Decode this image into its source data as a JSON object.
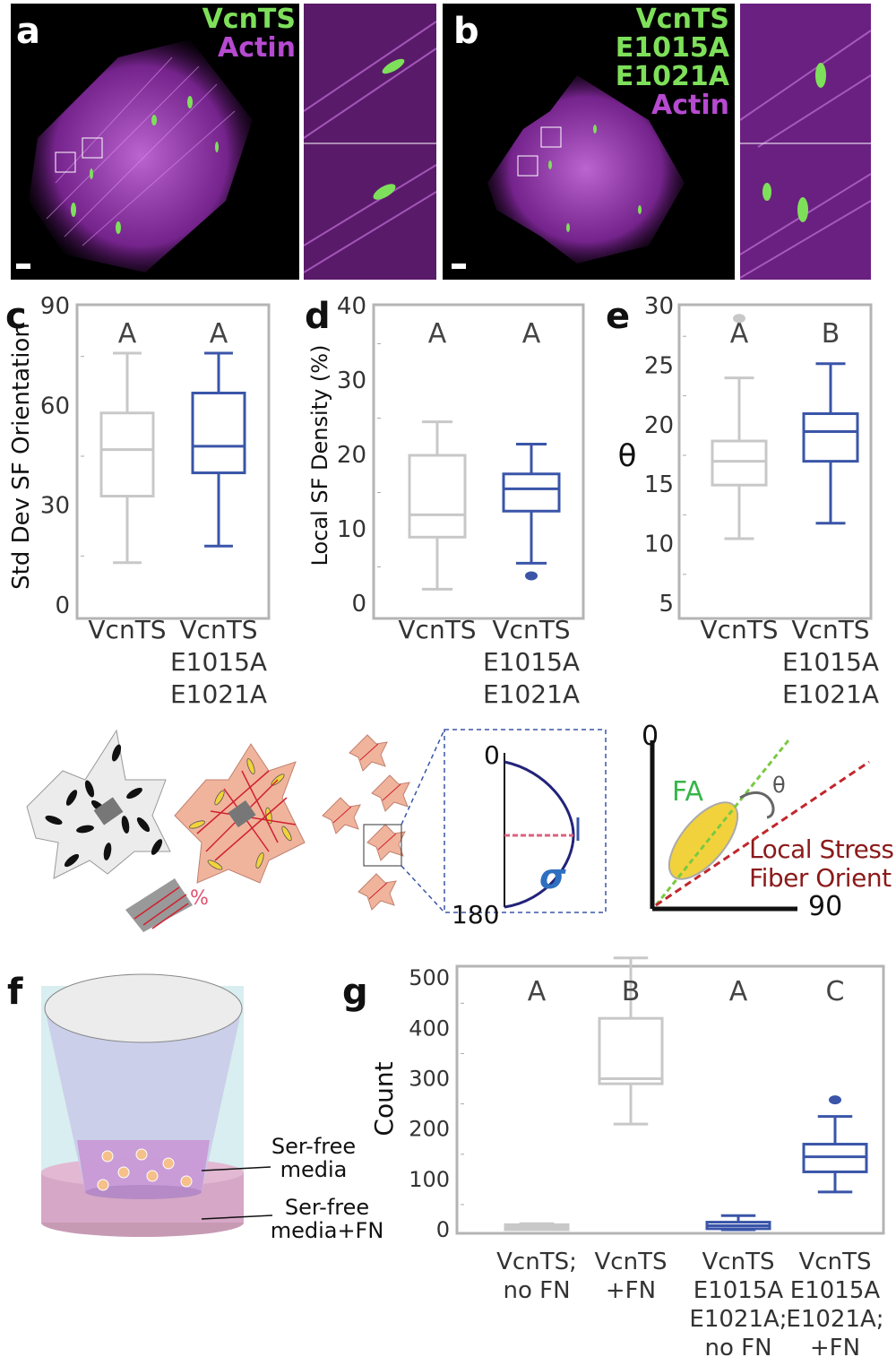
{
  "colors": {
    "gray": "#c8c8c8",
    "blue": "#3a55a8",
    "frame": "#b4b4b4",
    "green": "#7ee05a",
    "magenta": "#b64ad0",
    "red": "#c0272d",
    "pink": "#e0506f"
  },
  "panel_a": {
    "label": "a",
    "legend": [
      "VcnTS",
      "Actin"
    ]
  },
  "panel_b": {
    "label": "b",
    "legend": [
      "VcnTS",
      "E1015A",
      "E1021A",
      "Actin"
    ]
  },
  "chart_data": [
    {
      "panel": "c",
      "type": "box",
      "ylabel": "Std Dev SF Orientation",
      "ylim": [
        0,
        90
      ],
      "yticks": [
        0,
        30,
        60,
        90
      ],
      "categories": [
        [
          "VcnTS"
        ],
        [
          "VcnTS",
          "E1015A",
          "E1021A"
        ]
      ],
      "groups": [
        "A",
        "A"
      ],
      "boxes": [
        {
          "color": "gray",
          "min": 13,
          "q1": 33,
          "median": 47,
          "q3": 58,
          "max": 76
        },
        {
          "color": "blue",
          "min": 18,
          "q1": 40,
          "median": 48,
          "q3": 64,
          "max": 76
        }
      ],
      "outliers": []
    },
    {
      "panel": "d",
      "type": "box",
      "ylabel": "Local SF Density (%)",
      "ylim": [
        0,
        40
      ],
      "yticks": [
        0,
        10,
        20,
        30,
        40
      ],
      "categories": [
        [
          "VcnTS"
        ],
        [
          "VcnTS",
          "E1015A",
          "E1021A"
        ]
      ],
      "groups": [
        "A",
        "A"
      ],
      "boxes": [
        {
          "color": "gray",
          "min": 2,
          "q1": 9,
          "median": 12,
          "q3": 20,
          "max": 24.5
        },
        {
          "color": "blue",
          "min": 5.5,
          "q1": 12.5,
          "median": 15.5,
          "q3": 17.5,
          "max": 21.5
        }
      ],
      "outliers": [
        {
          "series": 1,
          "value": 3.8
        }
      ]
    },
    {
      "panel": "e",
      "type": "box",
      "ylabel": "θ",
      "ylim": [
        5,
        30
      ],
      "yticks": [
        5,
        10,
        15,
        20,
        25,
        30
      ],
      "categories": [
        [
          "VcnTS"
        ],
        [
          "VcnTS",
          "E1015A",
          "E1021A"
        ]
      ],
      "groups": [
        "A",
        "B"
      ],
      "boxes": [
        {
          "color": "gray",
          "min": 10.5,
          "q1": 15,
          "median": 17,
          "q3": 18.7,
          "max": 24
        },
        {
          "color": "blue",
          "min": 11.8,
          "q1": 17,
          "median": 19.5,
          "q3": 21,
          "max": 25.2
        }
      ],
      "outliers": [
        {
          "series": 0,
          "value": 29
        }
      ]
    },
    {
      "panel": "g",
      "type": "box",
      "ylabel": "Count",
      "ylim": [
        0,
        520
      ],
      "yticks": [
        0,
        100,
        200,
        300,
        400,
        500
      ],
      "categories": [
        [
          "VcnTS;",
          "no FN"
        ],
        [
          "VcnTS",
          "+FN"
        ],
        [
          "VcnTS",
          "E1015A",
          "E1021A;",
          "no FN"
        ],
        [
          "VcnTS",
          "E1015A",
          "E1021A;",
          "+FN"
        ]
      ],
      "groups": [
        "A",
        "B",
        "A",
        "C"
      ],
      "boxes": [
        {
          "color": "gray",
          "min": 0,
          "q1": 0,
          "median": 5,
          "q3": 10,
          "max": 12
        },
        {
          "color": "gray",
          "min": 210,
          "q1": 290,
          "median": 300,
          "q3": 420,
          "max": 540
        },
        {
          "color": "blue",
          "min": 0,
          "q1": 2,
          "median": 8,
          "q3": 15,
          "max": 28
        },
        {
          "color": "blue",
          "min": 75,
          "q1": 115,
          "median": 145,
          "q3": 170,
          "max": 225
        }
      ],
      "outliers": [
        {
          "series": 3,
          "value": 258
        }
      ]
    }
  ],
  "schematic": {
    "percent": "%",
    "sigma": "σ",
    "orient_axis": [
      "0",
      "180"
    ],
    "theta_axis": [
      "0",
      "90"
    ],
    "fa": "FA",
    "theta": "θ",
    "local_stress": [
      "Local Stress",
      "Fiber Orient"
    ]
  },
  "panel_f": {
    "label": "f",
    "top_media": [
      "Ser-free",
      "media"
    ],
    "bottom_media": [
      "Ser-free",
      "media+FN"
    ]
  },
  "panel_g": {
    "label": "g"
  }
}
